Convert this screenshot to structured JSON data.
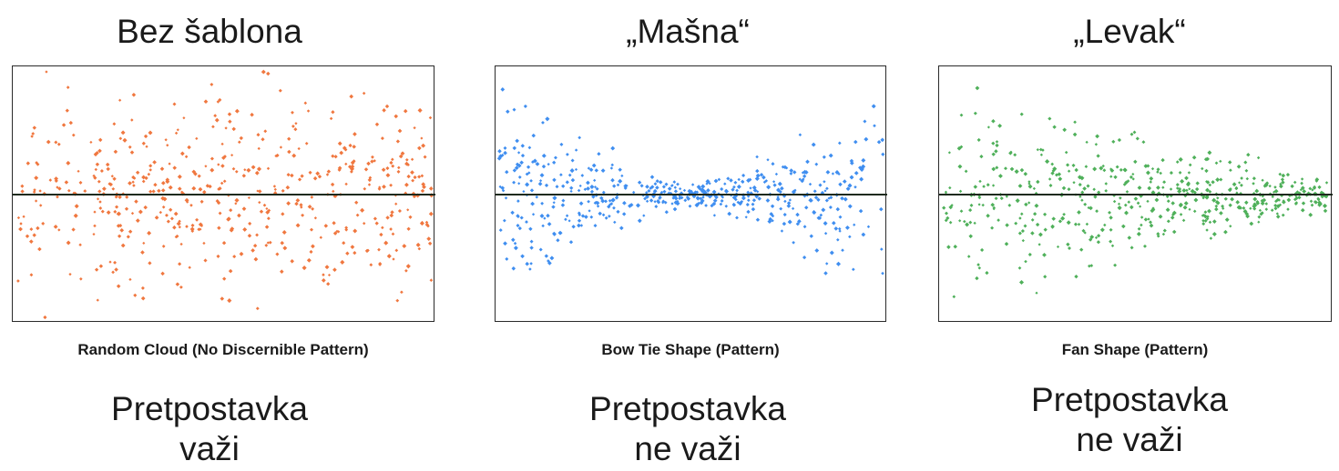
{
  "chart_data": [
    {
      "type": "scatter",
      "pattern": "random",
      "title": "Bez šablona",
      "caption": "Random Cloud (No Discernible Pattern)",
      "verdict": [
        "Pretpostavka",
        "važi"
      ],
      "point_color": "#f0773f",
      "reference_line": 0,
      "ylim": [
        -1,
        1
      ],
      "grid": false,
      "legend": "none",
      "seed": 11
    },
    {
      "type": "scatter",
      "pattern": "bow-tie",
      "title": "„Mašna“",
      "caption": "Bow Tie Shape (Pattern)",
      "verdict": [
        "Pretpostavka",
        "ne važi"
      ],
      "point_color": "#3f8ef0",
      "reference_line": 0,
      "ylim": [
        -1,
        1
      ],
      "grid": false,
      "legend": "none",
      "seed": 23
    },
    {
      "type": "scatter",
      "pattern": "fan",
      "title": "„Levak“",
      "caption": "Fan Shape (Pattern)",
      "verdict": [
        "Pretpostavka",
        "ne važi"
      ],
      "point_color": "#4fb05a",
      "reference_line": 0,
      "ylim": [
        -1,
        1
      ],
      "grid": false,
      "legend": "none",
      "seed": 37
    }
  ]
}
